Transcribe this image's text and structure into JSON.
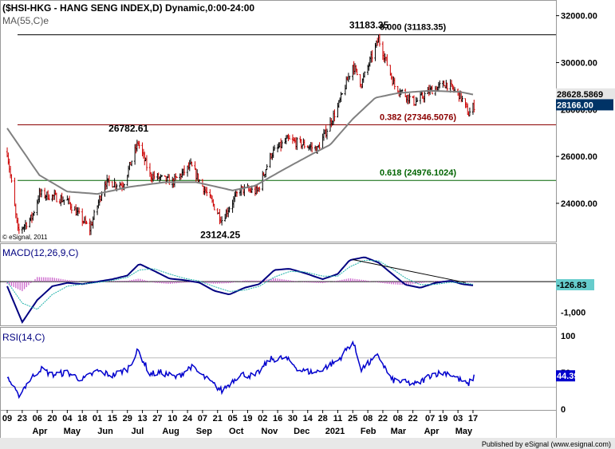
{
  "chart_data": [
    {
      "type": "candlestick",
      "title": "($HSI-HKG - HANG SENG INDEX,D) Dynamic,0:00-24:00",
      "indicator_label": "MA(55,C)e",
      "copyright": "© eSignal, 2011",
      "ylim": [
        22400,
        32600
      ],
      "y_ticks": [
        "32000.00",
        "30000.00",
        "28000.00",
        "26000.00",
        "24000.00"
      ],
      "last_price": "28166.00",
      "ma_value": "28628.5869",
      "annotations": [
        {
          "text": "31183.35",
          "x": "2021-02-18",
          "y": 31183.35
        },
        {
          "text": "26782.61",
          "x": "2020-07-09",
          "y": 26782.61
        },
        {
          "text": "23124.25",
          "x": "2020-09-25",
          "y": 23124.25
        }
      ],
      "fib_levels": [
        {
          "label": "0.000 (31183.35)",
          "value": 31183.35,
          "color": "#000000"
        },
        {
          "label": "0.382 (27346.5076)",
          "value": 27346.5076,
          "color": "#8b0000"
        },
        {
          "label": "0.618 (24976.1024)",
          "value": 24976.1024,
          "color": "#006400"
        }
      ],
      "price_path": [
        [
          "2020-03-09",
          26200
        ],
        [
          "2020-03-19",
          22800
        ],
        [
          "2020-04-01",
          23400
        ],
        [
          "2020-04-08",
          24400
        ],
        [
          "2020-04-20",
          24300
        ],
        [
          "2020-05-04",
          24100
        ],
        [
          "2020-05-25",
          22900
        ],
        [
          "2020-06-08",
          24900
        ],
        [
          "2020-06-25",
          24800
        ],
        [
          "2020-07-09",
          26600
        ],
        [
          "2020-07-20",
          25200
        ],
        [
          "2020-08-10",
          24900
        ],
        [
          "2020-08-27",
          25600
        ],
        [
          "2020-09-10",
          24500
        ],
        [
          "2020-09-25",
          23300
        ],
        [
          "2020-10-12",
          24600
        ],
        [
          "2020-10-28",
          24500
        ],
        [
          "2020-11-10",
          26100
        ],
        [
          "2020-11-25",
          26700
        ],
        [
          "2020-12-10",
          26500
        ],
        [
          "2020-12-23",
          26300
        ],
        [
          "2021-01-11",
          28100
        ],
        [
          "2021-01-25",
          29900
        ],
        [
          "2021-02-02",
          29100
        ],
        [
          "2021-02-18",
          31000
        ],
        [
          "2021-03-05",
          29000
        ],
        [
          "2021-03-24",
          28300
        ],
        [
          "2021-04-07",
          28800
        ],
        [
          "2021-04-22",
          29100
        ],
        [
          "2021-05-05",
          28600
        ],
        [
          "2021-05-13",
          27800
        ],
        [
          "2021-05-18",
          28166
        ]
      ],
      "ma_path": [
        [
          "2020-03-09",
          27200
        ],
        [
          "2020-04-08",
          25200
        ],
        [
          "2020-05-04",
          24500
        ],
        [
          "2020-06-01",
          24400
        ],
        [
          "2020-07-01",
          24700
        ],
        [
          "2020-08-03",
          24900
        ],
        [
          "2020-09-01",
          24900
        ],
        [
          "2020-10-05",
          24550
        ],
        [
          "2020-10-26",
          24750
        ],
        [
          "2020-11-20",
          25400
        ],
        [
          "2020-12-14",
          26000
        ],
        [
          "2021-01-04",
          26500
        ],
        [
          "2021-01-25",
          27600
        ],
        [
          "2021-02-15",
          28500
        ],
        [
          "2021-03-08",
          28700
        ],
        [
          "2021-04-06",
          28800
        ],
        [
          "2021-05-05",
          28750
        ],
        [
          "2021-05-18",
          28628.5869
        ]
      ]
    },
    {
      "type": "line",
      "title": "MACD(12,26,9,C)",
      "ylim": [
        -1400,
        1200
      ],
      "y_ticks": [
        "-1,000"
      ],
      "last_value": "-126.83",
      "series": [
        {
          "name": "MACD",
          "color": "#000080",
          "points": [
            [
              "2020-03-09",
              -150
            ],
            [
              "2020-03-23",
              -1320
            ],
            [
              "2020-04-06",
              -600
            ],
            [
              "2020-04-20",
              -150
            ],
            [
              "2020-05-04",
              -40
            ],
            [
              "2020-05-18",
              -80
            ],
            [
              "2020-06-01",
              0
            ],
            [
              "2020-06-15",
              80
            ],
            [
              "2020-06-29",
              200
            ],
            [
              "2020-07-10",
              580
            ],
            [
              "2020-07-24",
              350
            ],
            [
              "2020-08-07",
              100
            ],
            [
              "2020-08-21",
              50
            ],
            [
              "2020-09-04",
              -30
            ],
            [
              "2020-09-18",
              -300
            ],
            [
              "2020-10-02",
              -420
            ],
            [
              "2020-10-16",
              -200
            ],
            [
              "2020-10-30",
              -80
            ],
            [
              "2020-11-13",
              380
            ],
            [
              "2020-11-27",
              420
            ],
            [
              "2020-12-11",
              280
            ],
            [
              "2020-12-28",
              80
            ],
            [
              "2021-01-11",
              250
            ],
            [
              "2021-01-22",
              700
            ],
            [
              "2021-02-05",
              800
            ],
            [
              "2021-02-18",
              620
            ],
            [
              "2021-03-01",
              300
            ],
            [
              "2021-03-15",
              -100
            ],
            [
              "2021-03-29",
              -200
            ],
            [
              "2021-04-12",
              -40
            ],
            [
              "2021-04-26",
              30
            ],
            [
              "2021-05-07",
              -80
            ],
            [
              "2021-05-18",
              -126.83
            ]
          ]
        },
        {
          "name": "Signal",
          "color": "#20b2aa",
          "points": [
            [
              "2020-03-09",
              0
            ],
            [
              "2020-03-23",
              -700
            ],
            [
              "2020-04-06",
              -900
            ],
            [
              "2020-04-20",
              -420
            ],
            [
              "2020-05-04",
              -150
            ],
            [
              "2020-05-18",
              -80
            ],
            [
              "2020-06-01",
              -30
            ],
            [
              "2020-06-15",
              40
            ],
            [
              "2020-06-29",
              140
            ],
            [
              "2020-07-10",
              380
            ],
            [
              "2020-07-24",
              420
            ],
            [
              "2020-08-07",
              250
            ],
            [
              "2020-08-21",
              110
            ],
            [
              "2020-09-04",
              20
            ],
            [
              "2020-09-18",
              -160
            ],
            [
              "2020-10-02",
              -320
            ],
            [
              "2020-10-16",
              -280
            ],
            [
              "2020-10-30",
              -150
            ],
            [
              "2020-11-13",
              150
            ],
            [
              "2020-11-27",
              330
            ],
            [
              "2020-12-11",
              320
            ],
            [
              "2020-12-28",
              180
            ],
            [
              "2021-01-11",
              180
            ],
            [
              "2021-01-22",
              480
            ],
            [
              "2021-02-05",
              700
            ],
            [
              "2021-02-18",
              680
            ],
            [
              "2021-03-01",
              460
            ],
            [
              "2021-03-15",
              120
            ],
            [
              "2021-03-29",
              -100
            ],
            [
              "2021-04-12",
              -90
            ],
            [
              "2021-04-26",
              -20
            ],
            [
              "2021-05-07",
              -40
            ],
            [
              "2021-05-18",
              -90
            ]
          ]
        }
      ],
      "trendline": [
        [
          "2021-01-25",
          720
        ],
        [
          "2021-05-10",
          -30
        ]
      ]
    },
    {
      "type": "line",
      "title": "RSI(14,C)",
      "ylim": [
        0,
        110
      ],
      "y_ticks": [
        "100",
        "50",
        "0"
      ],
      "last_value": "44.39",
      "series": [
        {
          "name": "RSI",
          "color": "#0000cd",
          "points": [
            [
              "2020-03-09",
              45
            ],
            [
              "2020-03-19",
              18
            ],
            [
              "2020-03-30",
              40
            ],
            [
              "2020-04-09",
              55
            ],
            [
              "2020-04-20",
              47
            ],
            [
              "2020-05-04",
              50
            ],
            [
              "2020-05-18",
              40
            ],
            [
              "2020-06-01",
              52
            ],
            [
              "2020-06-15",
              46
            ],
            [
              "2020-06-29",
              55
            ],
            [
              "2020-07-09",
              80
            ],
            [
              "2020-07-20",
              48
            ],
            [
              "2020-07-31",
              50
            ],
            [
              "2020-08-14",
              43
            ],
            [
              "2020-08-27",
              58
            ],
            [
              "2020-09-10",
              42
            ],
            [
              "2020-09-25",
              25
            ],
            [
              "2020-10-12",
              48
            ],
            [
              "2020-10-26",
              45
            ],
            [
              "2020-11-09",
              68
            ],
            [
              "2020-11-23",
              70
            ],
            [
              "2020-12-07",
              53
            ],
            [
              "2020-12-21",
              50
            ],
            [
              "2021-01-11",
              66
            ],
            [
              "2021-01-25",
              92
            ],
            [
              "2021-02-02",
              55
            ],
            [
              "2021-02-18",
              73
            ],
            [
              "2021-03-02",
              40
            ],
            [
              "2021-03-16",
              36
            ],
            [
              "2021-03-26",
              34
            ],
            [
              "2021-04-09",
              48
            ],
            [
              "2021-04-23",
              50
            ],
            [
              "2021-05-07",
              38
            ],
            [
              "2021-05-12",
              33
            ],
            [
              "2021-05-18",
              44.39
            ]
          ]
        }
      ],
      "levels": [
        70,
        30
      ]
    }
  ],
  "x_axis": {
    "day_ticks": [
      [
        "2020-03-09",
        "09"
      ],
      [
        "2020-03-23",
        "23"
      ],
      [
        "2020-04-06",
        "06"
      ],
      [
        "2020-04-20",
        "20"
      ],
      [
        "2020-05-04",
        "04"
      ],
      [
        "2020-05-18",
        "18"
      ],
      [
        "2020-06-01",
        "01"
      ],
      [
        "2020-06-15",
        "15"
      ],
      [
        "2020-06-29",
        "29"
      ],
      [
        "2020-07-13",
        "13"
      ],
      [
        "2020-07-27",
        "27"
      ],
      [
        "2020-08-10",
        "10"
      ],
      [
        "2020-08-24",
        "24"
      ],
      [
        "2020-09-07",
        "07"
      ],
      [
        "2020-09-21",
        "21"
      ],
      [
        "2020-10-05",
        "05"
      ],
      [
        "2020-10-19",
        "19"
      ],
      [
        "2020-11-02",
        "02"
      ],
      [
        "2020-11-16",
        "16"
      ],
      [
        "2020-11-30",
        "30"
      ],
      [
        "2020-12-14",
        "14"
      ],
      [
        "2020-12-28",
        "28"
      ],
      [
        "2021-01-11",
        "11"
      ],
      [
        "2021-01-25",
        "25"
      ],
      [
        "2021-02-08",
        "08"
      ],
      [
        "2021-02-22",
        "22"
      ],
      [
        "2021-03-08",
        "08"
      ],
      [
        "2021-03-22",
        "22"
      ],
      [
        "2021-04-07",
        "07"
      ],
      [
        "2021-04-19",
        "19"
      ],
      [
        "2021-05-03",
        "03"
      ],
      [
        "2021-05-17",
        "17"
      ]
    ],
    "month_labels": [
      [
        "2020-04-01",
        "Apr"
      ],
      [
        "2020-05-01",
        "May"
      ],
      [
        "2020-06-01",
        "Jun"
      ],
      [
        "2020-07-01",
        "Jul"
      ],
      [
        "2020-08-01",
        "Aug"
      ],
      [
        "2020-09-01",
        "Sep"
      ],
      [
        "2020-10-01",
        "Oct"
      ],
      [
        "2020-11-01",
        "Nov"
      ],
      [
        "2020-12-01",
        "Dec"
      ],
      [
        "2021-01-01",
        "2021"
      ],
      [
        "2021-02-01",
        "Feb"
      ],
      [
        "2021-03-01",
        "Mar"
      ],
      [
        "2021-04-01",
        "Apr"
      ],
      [
        "2021-05-01",
        "May"
      ]
    ]
  },
  "footer": {
    "publisher": "Published by eSignal (www.esignal.com)"
  },
  "colors": {
    "up": "#000000",
    "down": "#cc0000",
    "ma": "#808080",
    "macd_hist_pos": "#cc66cc",
    "macd_hist_neg": "#cc66cc",
    "price_box": "#003366"
  }
}
